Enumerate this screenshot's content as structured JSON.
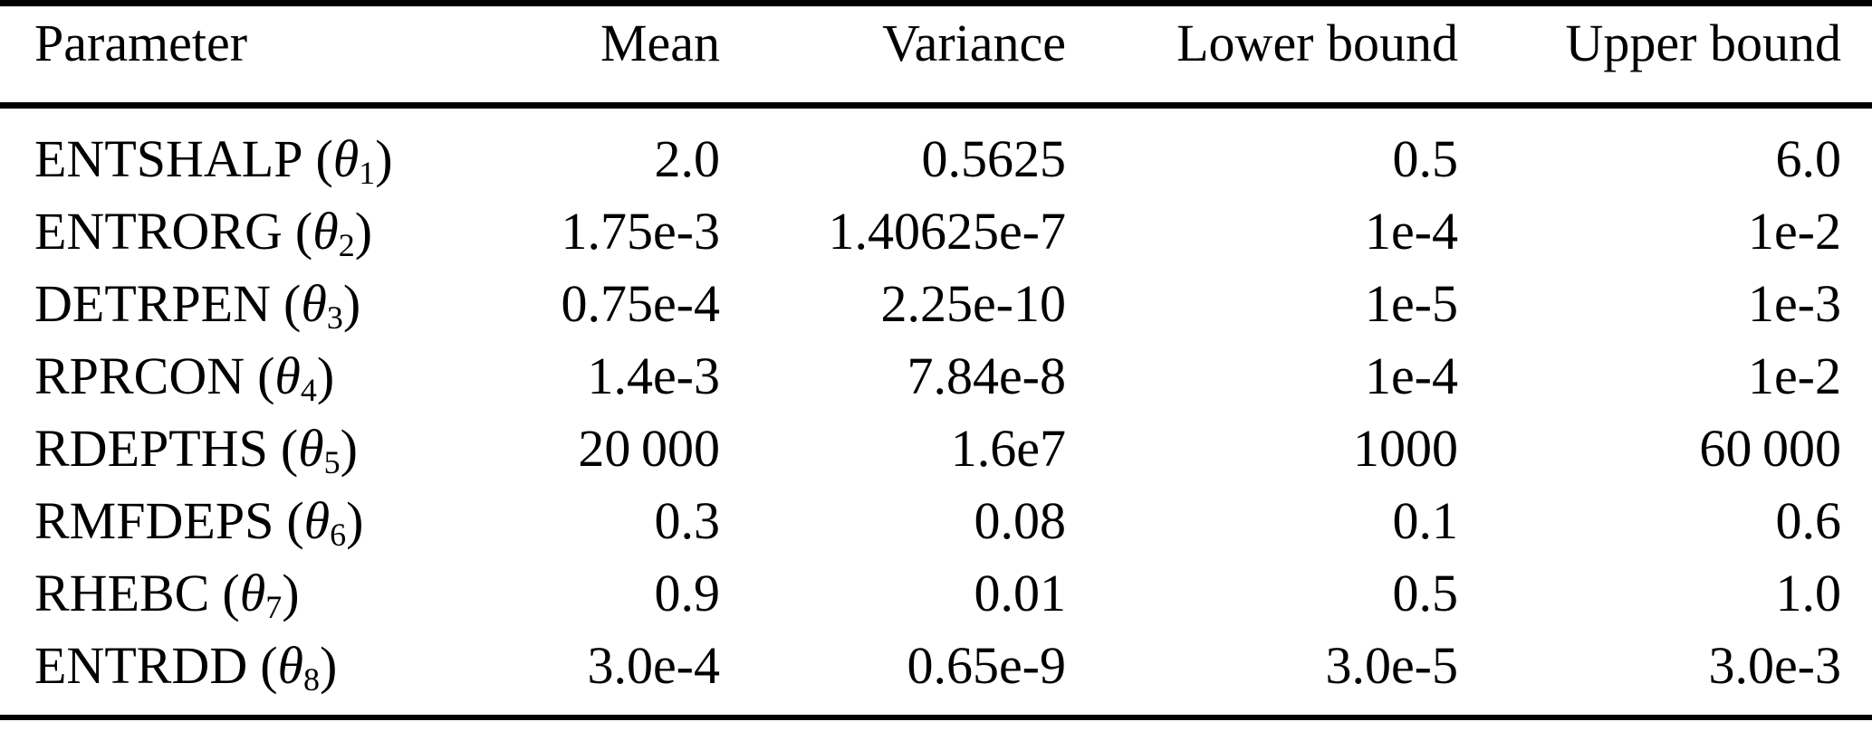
{
  "table": {
    "columns": [
      "Parameter",
      "Mean",
      "Variance",
      "Lower bound",
      "Upper bound"
    ],
    "symbols": {
      "theta": "θ",
      "open_paren": "(",
      "close_paren": ")"
    },
    "rows": [
      {
        "param": "ENTSHALP",
        "index": "1",
        "mean": "2.0",
        "variance": "0.5625",
        "lower": "0.5",
        "upper": "6.0"
      },
      {
        "param": "ENTRORG",
        "index": "2",
        "mean": "1.75e-3",
        "variance": "1.40625e-7",
        "lower": "1e-4",
        "upper": "1e-2"
      },
      {
        "param": "DETRPEN",
        "index": "3",
        "mean": "0.75e-4",
        "variance": "2.25e-10",
        "lower": "1e-5",
        "upper": "1e-3"
      },
      {
        "param": "RPRCON",
        "index": "4",
        "mean": "1.4e-3",
        "variance": "7.84e-8",
        "lower": "1e-4",
        "upper": "1e-2"
      },
      {
        "param": "RDEPTHS",
        "index": "5",
        "mean": "20 000",
        "variance": "1.6e7",
        "lower": "1000",
        "upper": "60 000"
      },
      {
        "param": "RMFDEPS",
        "index": "6",
        "mean": "0.3",
        "variance": "0.08",
        "lower": "0.1",
        "upper": "0.6"
      },
      {
        "param": "RHEBC",
        "index": "7",
        "mean": "0.9",
        "variance": "0.01",
        "lower": "0.5",
        "upper": "1.0"
      },
      {
        "param": "ENTRDD",
        "index": "8",
        "mean": "3.0e-4",
        "variance": "0.65e-9",
        "lower": "3.0e-5",
        "upper": "3.0e-3"
      }
    ]
  }
}
